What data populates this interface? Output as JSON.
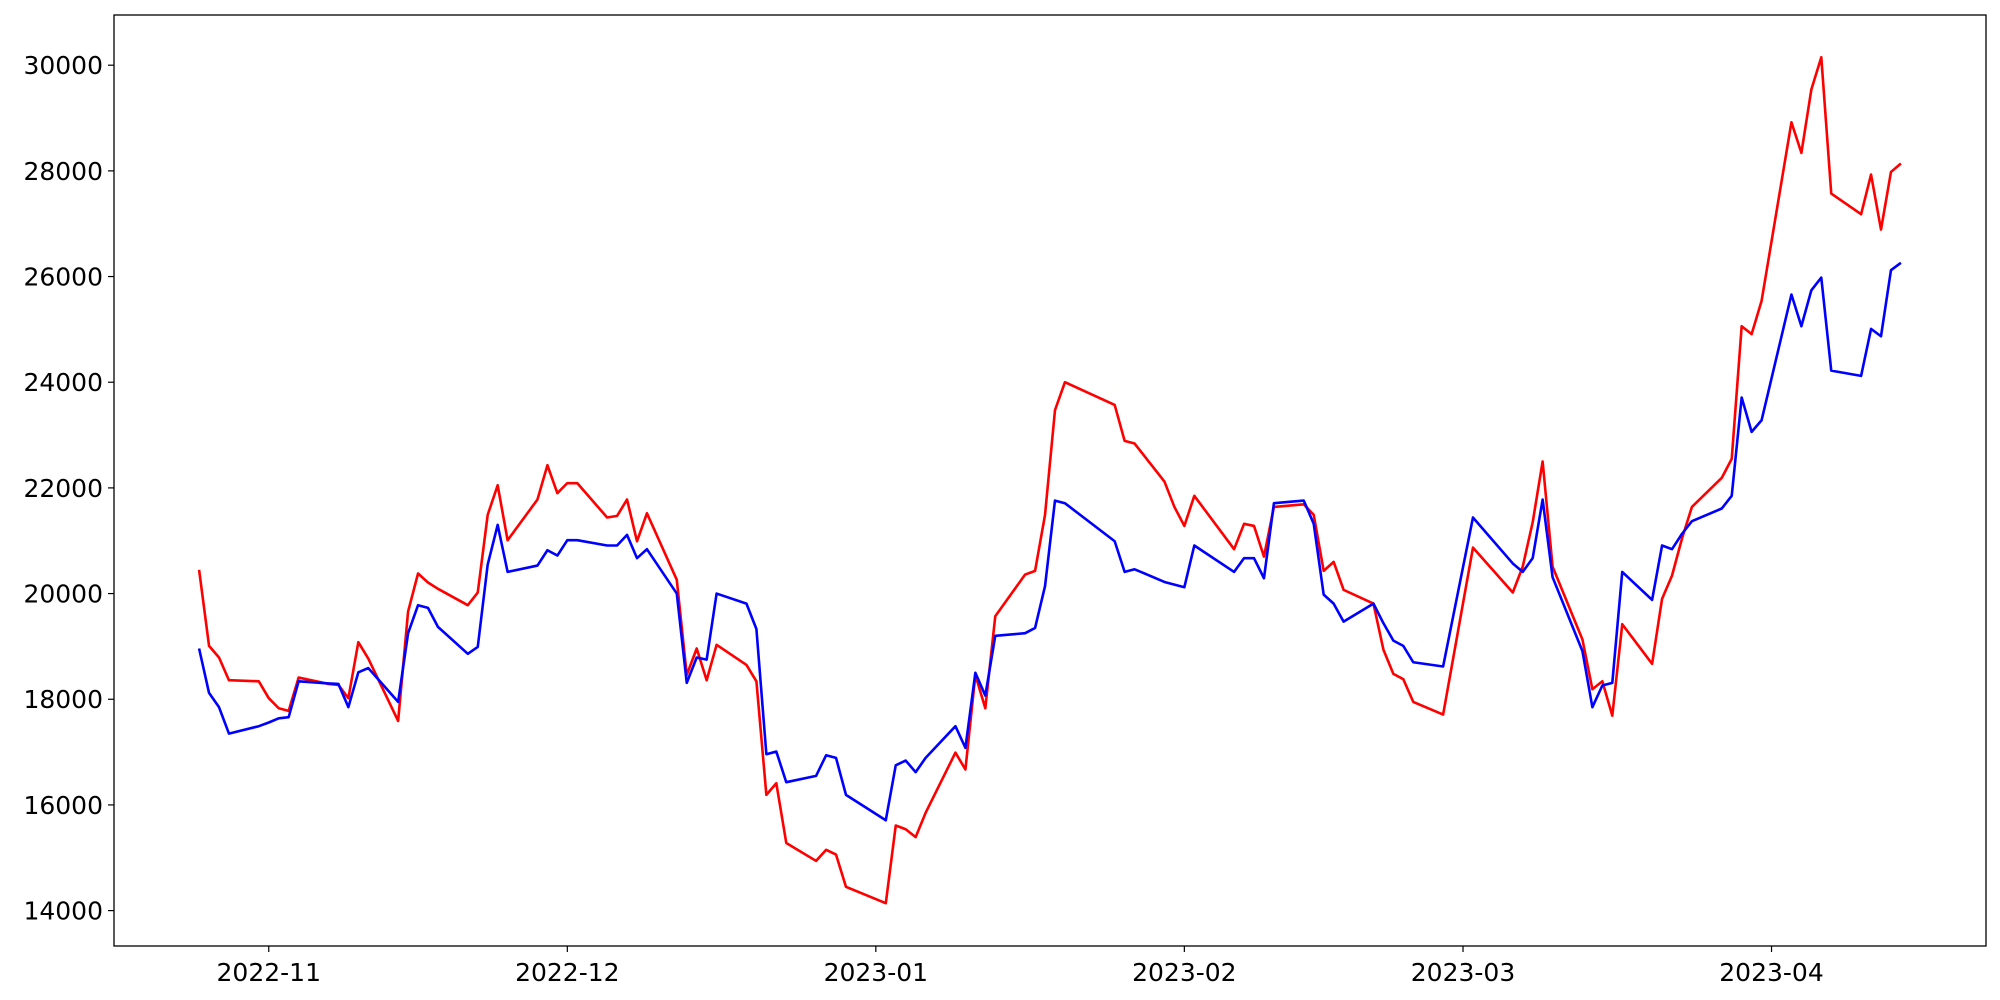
{
  "chart_data": {
    "type": "line",
    "x": [
      19290,
      19291,
      19292,
      19293,
      19296,
      19297,
      19298,
      19299,
      19300,
      19303,
      19304,
      19305,
      19306,
      19307,
      19310,
      19311,
      19312,
      19313,
      19314,
      19317,
      19318,
      19319,
      19320,
      19321,
      19324,
      19325,
      19326,
      19327,
      19328,
      19331,
      19332,
      19333,
      19334,
      19335,
      19338,
      19339,
      19340,
      19341,
      19342,
      19345,
      19346,
      19347,
      19348,
      19349,
      19352,
      19353,
      19354,
      19355,
      19359,
      19360,
      19361,
      19362,
      19363,
      19366,
      19367,
      19368,
      19369,
      19370,
      19373,
      19374,
      19375,
      19376,
      19377,
      19382,
      19383,
      19384,
      19387,
      19388,
      19389,
      19390,
      19394,
      19395,
      19396,
      19397,
      19398,
      19401,
      19402,
      19403,
      19404,
      19405,
      19408,
      19409,
      19410,
      19411,
      19412,
      19415,
      19418,
      19422,
      19423,
      19424,
      19425,
      19426,
      19429,
      19430,
      19431,
      19432,
      19433,
      19436,
      19437,
      19438,
      19439,
      19440,
      19443,
      19444,
      19445,
      19446,
      19447,
      19450,
      19451,
      19452,
      19453,
      19454,
      19457,
      19458,
      19459,
      19460,
      19461
    ],
    "series": [
      {
        "color": "#ff0000",
        "values": [
          20450,
          19010,
          18790,
          18360,
          18340,
          18020,
          17830,
          17780,
          18410,
          18290,
          18270,
          18020,
          19080,
          18770,
          17590,
          19660,
          20380,
          20210,
          20090,
          19780,
          20020,
          21490,
          22050,
          21010,
          21780,
          22430,
          21900,
          22090,
          22090,
          21440,
          21470,
          21780,
          20990,
          21520,
          20260,
          18460,
          18960,
          18360,
          19030,
          18650,
          18340,
          16190,
          16410,
          15280,
          14940,
          15150,
          15060,
          14450,
          14140,
          15610,
          15540,
          15390,
          15850,
          16990,
          16670,
          18460,
          17830,
          19570,
          20360,
          20430,
          21490,
          23470,
          24000,
          23570,
          22890,
          22840,
          22120,
          21640,
          21280,
          21850,
          20840,
          21320,
          21280,
          20700,
          21640,
          21690,
          21490,
          20430,
          20600,
          20070,
          19810,
          18940,
          18480,
          18380,
          17950,
          17710,
          20870,
          20020,
          20510,
          21350,
          22500,
          20510,
          19130,
          18190,
          18340,
          17690,
          19420,
          18670,
          19900,
          20340,
          21040,
          21640,
          22190,
          22550,
          25060,
          24910,
          25540,
          28920,
          28340,
          29540,
          30150,
          27570,
          27180,
          27930,
          26890,
          27980,
          28140
        ]
      },
      {
        "color": "#0000ff",
        "values": [
          18960,
          18120,
          17850,
          17350,
          17490,
          17560,
          17640,
          17660,
          18340,
          18300,
          18290,
          17850,
          18510,
          18590,
          17950,
          19250,
          19780,
          19730,
          19370,
          18860,
          18990,
          20550,
          21300,
          20410,
          20530,
          20820,
          20720,
          21010,
          21010,
          20910,
          20910,
          21110,
          20670,
          20840,
          20000,
          18310,
          18790,
          18750,
          20000,
          19810,
          19330,
          16960,
          17010,
          16430,
          16550,
          16940,
          16890,
          16190,
          15710,
          16750,
          16840,
          16620,
          16890,
          17490,
          17080,
          18500,
          18070,
          19200,
          19250,
          19350,
          20140,
          21760,
          21710,
          20990,
          20410,
          20460,
          20220,
          20170,
          20120,
          20910,
          20410,
          20670,
          20670,
          20290,
          21710,
          21760,
          21320,
          19980,
          19810,
          19470,
          19810,
          19440,
          19110,
          19010,
          18700,
          18620,
          21440,
          20570,
          20410,
          20670,
          21780,
          20310,
          18910,
          17850,
          18260,
          18310,
          20410,
          19880,
          20910,
          20840,
          21130,
          21370,
          21610,
          21850,
          23710,
          23060,
          23280,
          25660,
          25060,
          25740,
          25980,
          24220,
          24120,
          25010,
          24870,
          26120,
          26260
        ]
      }
    ],
    "xlim": [
      19281.45,
      19469.55
    ],
    "xticks": [
      {
        "value": 19297,
        "label": "2022-11"
      },
      {
        "value": 19327,
        "label": "2022-12"
      },
      {
        "value": 19358,
        "label": "2023-01"
      },
      {
        "value": 19389,
        "label": "2023-02"
      },
      {
        "value": 19417,
        "label": "2023-03"
      },
      {
        "value": 19448,
        "label": "2023-04"
      }
    ],
    "ylim": [
      13330,
      30950
    ],
    "yticks": [
      14000,
      16000,
      18000,
      20000,
      22000,
      24000,
      26000,
      28000,
      30000
    ],
    "grid": false
  }
}
